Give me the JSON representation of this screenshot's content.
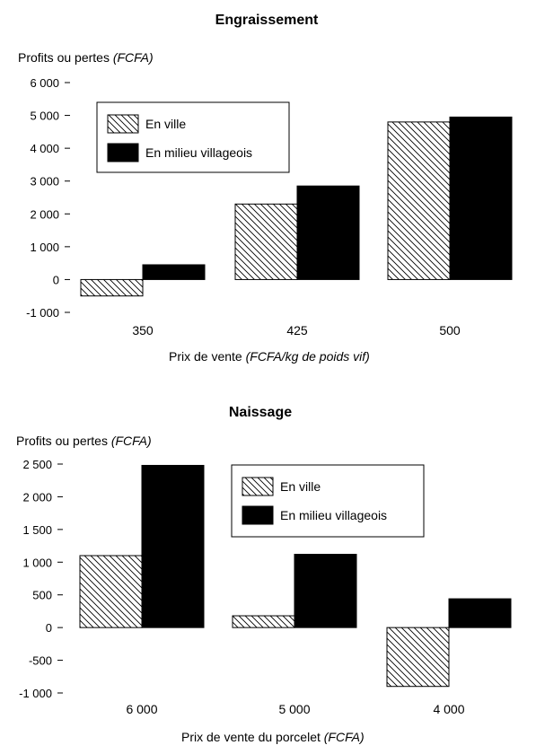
{
  "chart_data": [
    {
      "type": "bar",
      "title": "Engraissement",
      "ylabel": "Profits ou pertes",
      "ylabel_unit": "(FCFA)",
      "xlabel": "Prix de vente",
      "xlabel_unit": "(FCFA/kg de poids vif)",
      "categories": [
        "350",
        "425",
        "500"
      ],
      "ylim": [
        -1000,
        6000
      ],
      "yticks": [
        -1000,
        0,
        1000,
        2000,
        3000,
        4000,
        5000,
        6000
      ],
      "ytick_labels": [
        "-1 000",
        "0",
        "1 000",
        "2 000",
        "3 000",
        "4 000",
        "5 000",
        "6 000"
      ],
      "legend_position": "top-left",
      "series": [
        {
          "name": "En ville",
          "pattern": "hatch",
          "values": [
            -500,
            2300,
            4800
          ]
        },
        {
          "name": "En milieu villageois",
          "pattern": "solid",
          "color": "#000000",
          "values": [
            450,
            2850,
            4950
          ]
        }
      ]
    },
    {
      "type": "bar",
      "title": "Naissage",
      "ylabel": "Profits ou pertes",
      "ylabel_unit": "(FCFA)",
      "xlabel": "Prix de vente du porcelet",
      "xlabel_unit": "(FCFA)",
      "categories": [
        "6 000",
        "5 000",
        "4 000"
      ],
      "ylim": [
        -1000,
        2500
      ],
      "yticks": [
        -1000,
        -500,
        0,
        500,
        1000,
        1500,
        2000,
        2500
      ],
      "ytick_labels": [
        "-1 000",
        "-500",
        "0",
        "500",
        "1 000",
        "1 500",
        "2 000",
        "2 500"
      ],
      "legend_position": "top-right",
      "series": [
        {
          "name": "En ville",
          "pattern": "hatch",
          "values": [
            1100,
            180,
            -900
          ]
        },
        {
          "name": "En milieu villageois",
          "pattern": "solid",
          "color": "#000000",
          "values": [
            2480,
            1120,
            440
          ]
        }
      ]
    }
  ]
}
